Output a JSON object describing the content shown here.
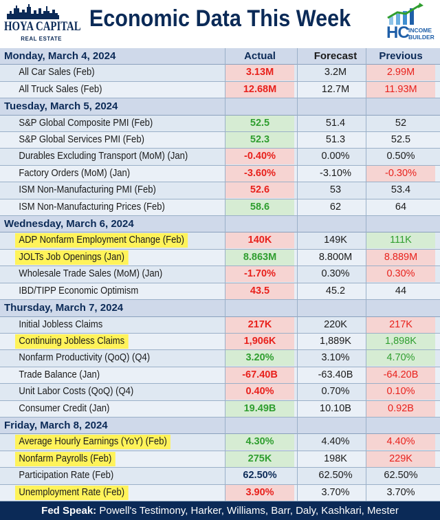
{
  "header": {
    "logo_left_line1": "HOYA CAPITAL",
    "logo_left_line2": "REAL ESTATE",
    "title": "Economic Data This Week",
    "logo_right_hc": "HC",
    "logo_right_line1": "INCOME",
    "logo_right_line2": "BUILDER"
  },
  "columns": {
    "actual": "Actual",
    "forecast": "Forecast",
    "previous": "Previous"
  },
  "colors": {
    "navy": "#0b2a57",
    "red": "#e8211c",
    "green": "#2f9e2f",
    "black": "#1a1a1a",
    "highlight": "#fff35a",
    "red_bg": "#f6d4d2",
    "green_bg": "#d6ecd3"
  },
  "rows": [
    {
      "type": "day",
      "label": "Monday, March 4, 2024",
      "show_headers": true
    },
    {
      "type": "data",
      "label": "All Car Sales (Feb)",
      "actual": "3.13M",
      "actual_tone": "red",
      "forecast": "3.2M",
      "previous": "2.99M",
      "previous_tone": "red",
      "highlight": false
    },
    {
      "type": "data",
      "label": "All Truck Sales (Feb)",
      "actual": "12.68M",
      "actual_tone": "red",
      "forecast": "12.7M",
      "previous": "11.93M",
      "previous_tone": "red",
      "highlight": false
    },
    {
      "type": "day",
      "label": "Tuesday, March 5, 2024"
    },
    {
      "type": "data",
      "label": "S&P Global Composite PMI (Feb)",
      "actual": "52.5",
      "actual_tone": "green",
      "forecast": "51.4",
      "previous": "52",
      "previous_tone": "black",
      "highlight": false
    },
    {
      "type": "data",
      "label": "S&P Global Services PMI (Feb)",
      "actual": "52.3",
      "actual_tone": "green",
      "forecast": "51.3",
      "previous": "52.5",
      "previous_tone": "black",
      "highlight": false
    },
    {
      "type": "data",
      "label": "Durables Excluding Transport (MoM) (Jan)",
      "actual": "-0.40%",
      "actual_tone": "red",
      "forecast": "0.00%",
      "previous": "0.50%",
      "previous_tone": "black",
      "highlight": false
    },
    {
      "type": "data",
      "label": "Factory Orders (MoM) (Jan)",
      "actual": "-3.60%",
      "actual_tone": "red",
      "forecast": "-3.10%",
      "previous": "-0.30%",
      "previous_tone": "red",
      "highlight": false
    },
    {
      "type": "data",
      "label": "ISM Non-Manufacturing PMI (Feb)",
      "actual": "52.6",
      "actual_tone": "red",
      "forecast": "53",
      "previous": "53.4",
      "previous_tone": "black",
      "highlight": false
    },
    {
      "type": "data",
      "label": "ISM Non-Manufacturing Prices (Feb)",
      "actual": "58.6",
      "actual_tone": "green",
      "forecast": "62",
      "previous": "64",
      "previous_tone": "black",
      "highlight": false
    },
    {
      "type": "day",
      "label": "Wednesday, March 6, 2024"
    },
    {
      "type": "data",
      "label": "ADP Nonfarm Employment Change (Feb)",
      "actual": "140K",
      "actual_tone": "red",
      "forecast": "149K",
      "previous": "111K",
      "previous_tone": "green",
      "highlight": true
    },
    {
      "type": "data",
      "label": "JOLTs Job Openings (Jan)",
      "actual": "8.863M",
      "actual_tone": "green",
      "forecast": "8.800M",
      "previous": "8.889M",
      "previous_tone": "red",
      "highlight": true
    },
    {
      "type": "data",
      "label": "Wholesale Trade Sales (MoM) (Jan)",
      "actual": "-1.70%",
      "actual_tone": "red",
      "forecast": "0.30%",
      "previous": "0.30%",
      "previous_tone": "red",
      "highlight": false
    },
    {
      "type": "data",
      "label": "IBD/TIPP Economic Optimism",
      "actual": "43.5",
      "actual_tone": "red",
      "forecast": "45.2",
      "previous": "44",
      "previous_tone": "black",
      "highlight": false
    },
    {
      "type": "day",
      "label": "Thursday, March 7, 2024"
    },
    {
      "type": "data",
      "label": "Initial Jobless Claims",
      "actual": "217K",
      "actual_tone": "red",
      "forecast": "220K",
      "previous": "217K",
      "previous_tone": "red",
      "highlight": false
    },
    {
      "type": "data",
      "label": "Continuing Jobless Claims",
      "actual": "1,906K",
      "actual_tone": "red",
      "forecast": "1,889K",
      "previous": "1,898K",
      "previous_tone": "green",
      "highlight": true
    },
    {
      "type": "data",
      "label": "Nonfarm Productivity (QoQ) (Q4)",
      "actual": "3.20%",
      "actual_tone": "green",
      "forecast": "3.10%",
      "previous": "4.70%",
      "previous_tone": "green",
      "highlight": false
    },
    {
      "type": "data",
      "label": "Trade Balance (Jan)",
      "actual": "-67.40B",
      "actual_tone": "red",
      "forecast": "-63.40B",
      "previous": "-64.20B",
      "previous_tone": "red",
      "highlight": false
    },
    {
      "type": "data",
      "label": "Unit Labor Costs (QoQ) (Q4)",
      "actual": "0.40%",
      "actual_tone": "red",
      "forecast": "0.70%",
      "previous": "0.10%",
      "previous_tone": "red",
      "highlight": false
    },
    {
      "type": "data",
      "label": "Consumer Credit (Jan)",
      "actual": "19.49B",
      "actual_tone": "green",
      "forecast": "10.10B",
      "previous": "0.92B",
      "previous_tone": "red",
      "highlight": false
    },
    {
      "type": "day",
      "label": "Friday, March 8, 2024"
    },
    {
      "type": "data",
      "label": "Average Hourly Earnings (YoY) (Feb)",
      "actual": "4.30%",
      "actual_tone": "green",
      "forecast": "4.40%",
      "previous": "4.40%",
      "previous_tone": "red",
      "highlight": true
    },
    {
      "type": "data",
      "label": "Nonfarm Payrolls (Feb)",
      "actual": "275K",
      "actual_tone": "green",
      "forecast": "198K",
      "previous": "229K",
      "previous_tone": "red",
      "highlight": true
    },
    {
      "type": "data",
      "label": "Participation Rate (Feb)",
      "actual": "62.50%",
      "actual_tone": "navy",
      "forecast": "62.50%",
      "previous": "62.50%",
      "previous_tone": "black",
      "highlight": false
    },
    {
      "type": "data",
      "label": "Unemployment Rate (Feb)",
      "actual": "3.90%",
      "actual_tone": "red",
      "forecast": "3.70%",
      "previous": "3.70%",
      "previous_tone": "black",
      "highlight": true
    }
  ],
  "footer": {
    "label": "Fed Speak:",
    "text": " Powell's Testimony, Harker, Williams, Barr, Daly, Kashkari, Mester"
  }
}
